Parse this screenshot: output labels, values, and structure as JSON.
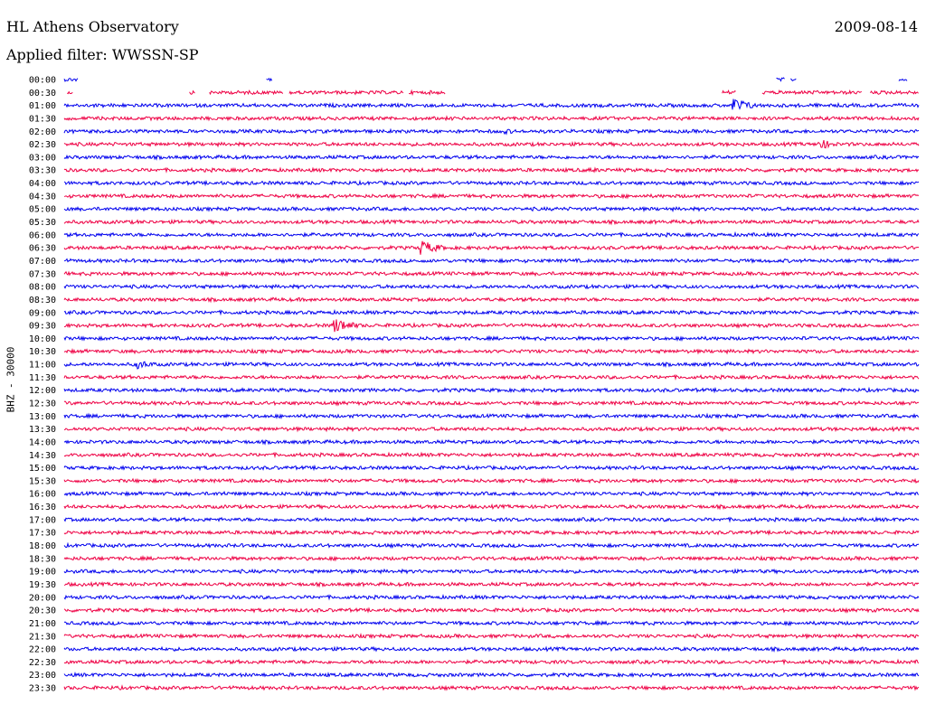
{
  "header": {
    "station": "HL Athens Observatory",
    "date": "2009-08-14",
    "filter_text": "Applied filter: WWSSN-SP"
  },
  "channel_label": "BHZ - 30000",
  "chart_data": {
    "type": "helicorder",
    "row_labels": [
      "00:00",
      "00:30",
      "01:00",
      "01:30",
      "02:00",
      "02:30",
      "03:00",
      "03:30",
      "04:00",
      "04:30",
      "05:00",
      "05:30",
      "06:00",
      "06:30",
      "07:00",
      "07:30",
      "08:00",
      "08:30",
      "09:00",
      "09:30",
      "10:00",
      "10:30",
      "11:00",
      "11:30",
      "12:00",
      "12:30",
      "13:00",
      "13:30",
      "14:00",
      "14:30",
      "15:00",
      "15:30",
      "16:00",
      "16:30",
      "17:00",
      "17:30",
      "18:00",
      "18:30",
      "19:00",
      "19:30",
      "20:00",
      "20:30",
      "21:00",
      "21:30",
      "22:00",
      "22:30",
      "23:00",
      "23:30"
    ],
    "colors": [
      "#0000ee",
      "#ee0044"
    ],
    "minutes_per_row": 30,
    "events": [
      {
        "row": "01:00",
        "minute": 23.5,
        "amplitude": "large"
      },
      {
        "row": "02:30",
        "minute": 26.5,
        "amplitude": "medium"
      },
      {
        "row": "06:30",
        "minute": 12.5,
        "amplitude": "large"
      },
      {
        "row": "09:30",
        "minute": 9.5,
        "amplitude": "large"
      },
      {
        "row": "11:00",
        "minute": 2.5,
        "amplitude": "medium"
      },
      {
        "row": "16:00",
        "minute": 5.5,
        "amplitude": "small"
      },
      {
        "row": "02:00",
        "minute": 15.5,
        "amplitude": "small"
      },
      {
        "row": "03:30",
        "minute": 18.5,
        "amplitude": "small"
      }
    ],
    "gaps": [
      {
        "row": "00:00",
        "note": "mostly no data, short segments"
      },
      {
        "row": "00:30",
        "note": "partial data segments"
      }
    ]
  }
}
